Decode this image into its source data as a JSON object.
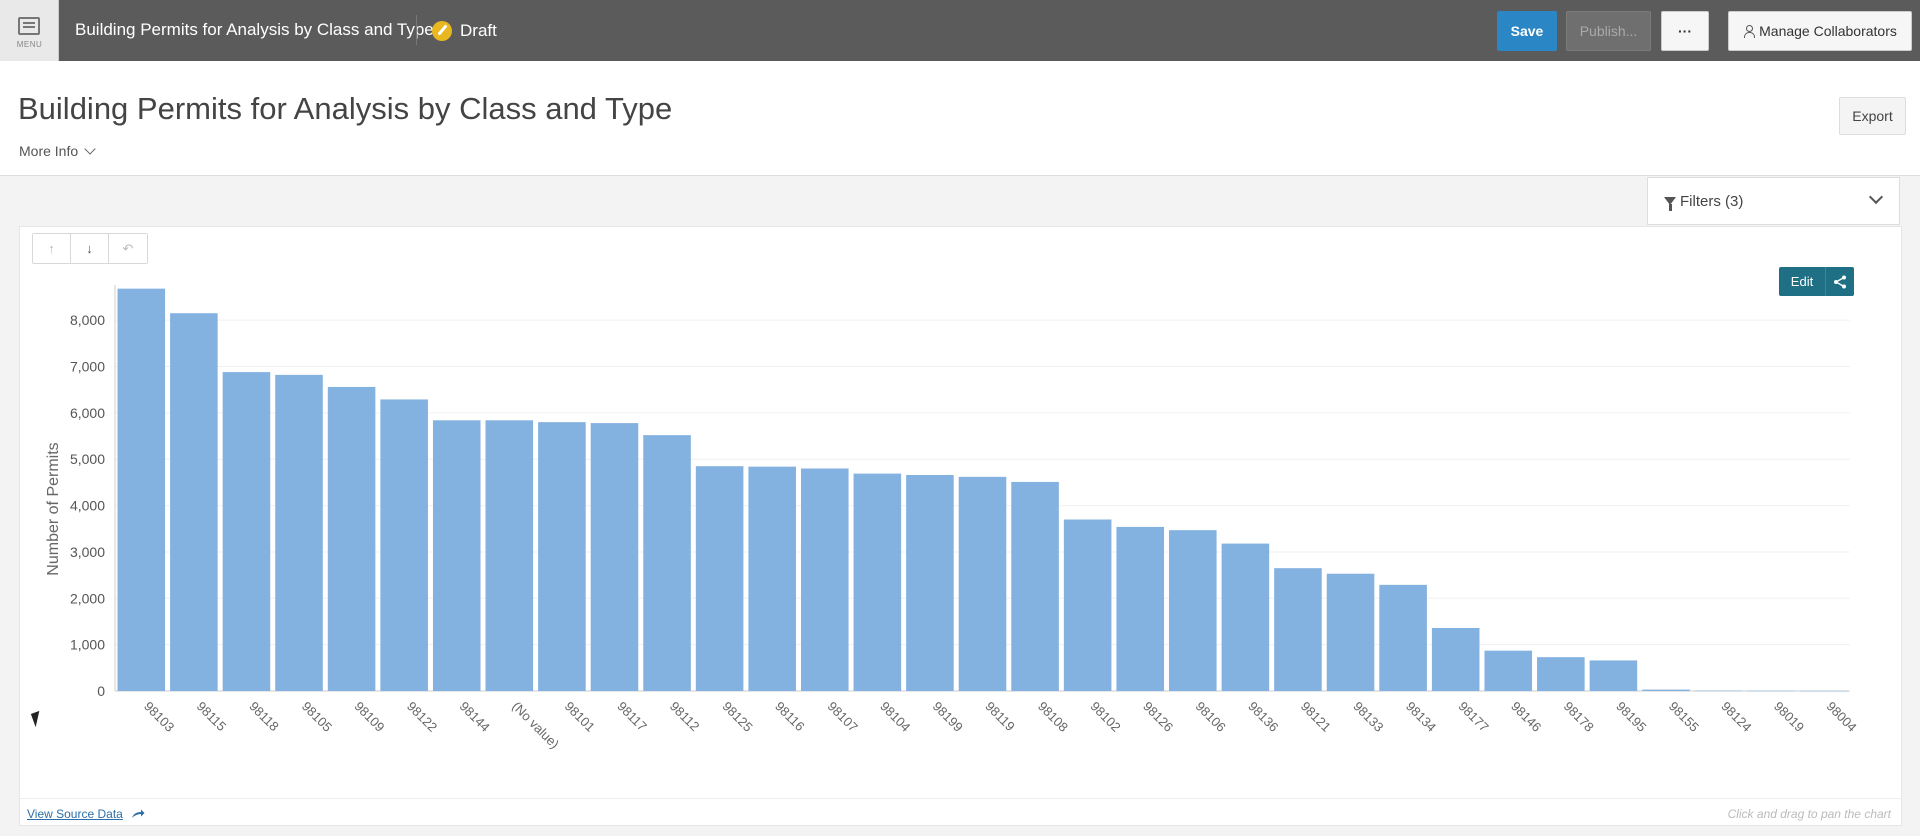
{
  "topbar": {
    "menu_label": "MENU",
    "app_title": "Building Permits for Analysis by Class and Type",
    "draft_label": "Draft",
    "save_label": "Save",
    "publish_label": "Publish...",
    "more_label": "···",
    "collaborators_label": "Manage Collaborators"
  },
  "header": {
    "title": "Building Permits for Analysis by Class and Type",
    "more_info_label": "More Info",
    "export_label": "Export"
  },
  "filters": {
    "label": "Filters (3)"
  },
  "toolbar": {
    "drill_up_icon": "↑",
    "drill_down_icon": "↓",
    "reset_icon": "↶",
    "edit_label": "Edit"
  },
  "footer": {
    "view_source_label": "View Source Data",
    "pan_hint": "Click and drag to pan the chart"
  },
  "colors": {
    "bar": "#84b2e0",
    "save": "#2b86c5",
    "edit": "#1f6f85",
    "topbar": "#5b5b5b"
  },
  "chart_data": {
    "type": "bar",
    "ylabel": "Number of Permits",
    "xlabel": "",
    "ylim": [
      0,
      8500
    ],
    "yticks": [
      0,
      1000,
      2000,
      3000,
      4000,
      5000,
      6000,
      7000,
      8000
    ],
    "ytick_labels": [
      "0",
      "1,000",
      "2,000",
      "3,000",
      "4,000",
      "5,000",
      "6,000",
      "7,000",
      "8,000"
    ],
    "categories": [
      "98103",
      "98115",
      "98118",
      "98105",
      "98109",
      "98122",
      "98144",
      "(No value)",
      "98101",
      "98117",
      "98112",
      "98125",
      "98116",
      "98107",
      "98104",
      "98199",
      "98119",
      "98108",
      "98102",
      "98126",
      "98106",
      "98136",
      "98121",
      "98133",
      "98134",
      "98177",
      "98146",
      "98178",
      "98195",
      "98155",
      "98124",
      "98019",
      "98004"
    ],
    "values": [
      8680,
      8150,
      6880,
      6820,
      6560,
      6290,
      5840,
      5840,
      5800,
      5780,
      5520,
      4850,
      4840,
      4800,
      4690,
      4660,
      4620,
      4510,
      3700,
      3540,
      3470,
      3180,
      2650,
      2530,
      2290,
      1360,
      870,
      730,
      660,
      30,
      8,
      6,
      4
    ],
    "grid": true
  }
}
